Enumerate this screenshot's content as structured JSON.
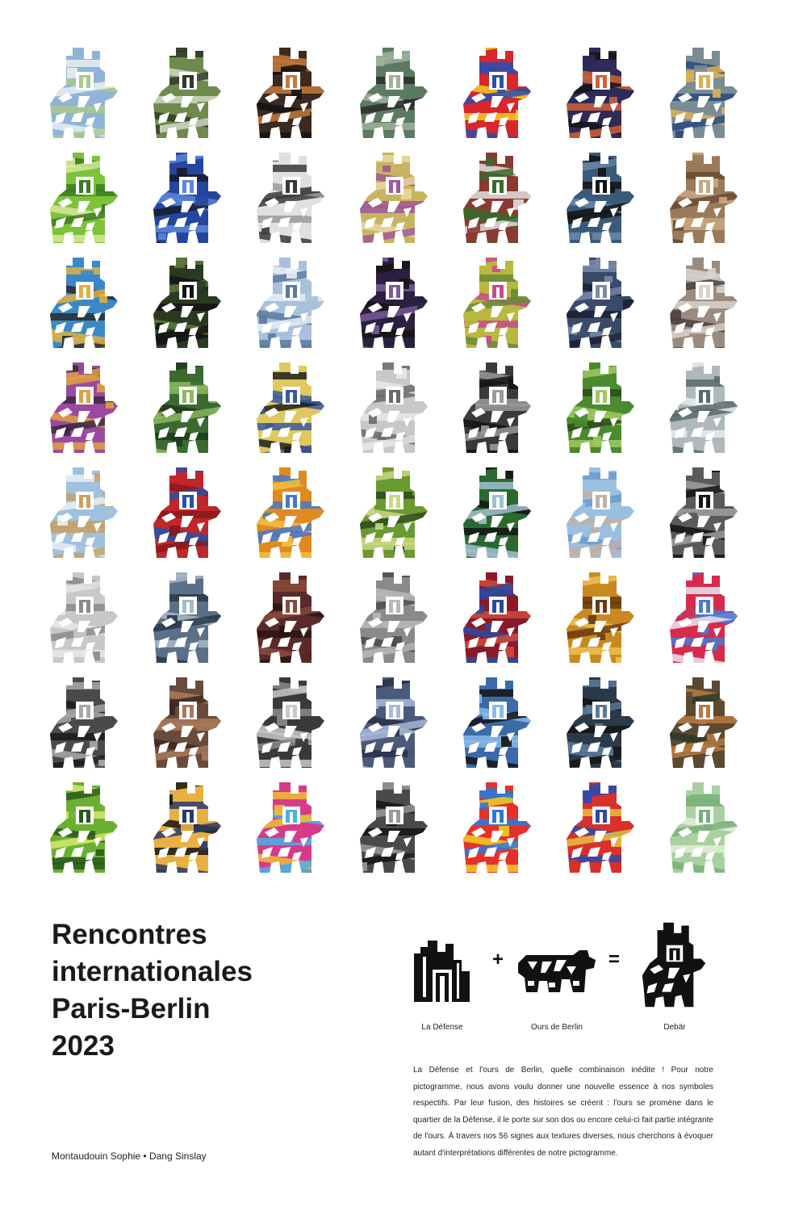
{
  "title_lines": [
    "Rencontres",
    "internationales",
    "Paris-Berlin",
    "2023"
  ],
  "authors": "Montaudouin Sophie • Dang Sinslay",
  "equation": {
    "left_label": "La Défense",
    "plus": "+",
    "middle_label": "Ours de Berlin",
    "equals": "=",
    "right_label": "Debär"
  },
  "description": "La Défense et l'ours de Berlin, quelle combinaison inédite ! Pour notre pictogramme, nous avons voulu donner une nouvelle essence à nos symboles respectifs. Par leur fusion, des histoires se créent : l'ours se promène dans le quartier de la Défense, il le porte sur son dos ou encore celui-ci fait partie intégrante de l'ours. À travers nos 56 signes aux textures diverses, nous cherchons à évoquer autant d'interprétations différentes de notre pictogramme.",
  "grid": {
    "columns": 7,
    "rows": 8,
    "textures": [
      [
        "#8fb4d8",
        "#a8c98e",
        "#e8eef2"
      ],
      [
        "#6e8a4c",
        "#2f3a28",
        "#cfd8c4"
      ],
      [
        "#3a2a20",
        "#c8783a",
        "#141414"
      ],
      [
        "#5b7a62",
        "#9fb29a",
        "#2c2c2c"
      ],
      [
        "#d8262a",
        "#2a4fb0",
        "#f0d020"
      ],
      [
        "#2e2a5a",
        "#d0603a",
        "#141414"
      ],
      [
        "#7a8c94",
        "#e0b050",
        "#2a4a80"
      ],
      [
        "#7cc23a",
        "#3c7a20",
        "#d8e89a"
      ],
      [
        "#2446a0",
        "#5a86d8",
        "#1a1a2a"
      ],
      [
        "#e0e0e0",
        "#3a3a3a",
        "#9a9a9a"
      ],
      [
        "#c8b460",
        "#a05898",
        "#e8d8a0"
      ],
      [
        "#8a3a30",
        "#3a6a2a",
        "#e0e0e0"
      ],
      [
        "#3a5a7a",
        "#141414",
        "#6a8aa8"
      ],
      [
        "#9a7a5a",
        "#c8a880",
        "#6a4a30"
      ],
      [
        "#3a88c8",
        "#e0b040",
        "#2a2a2a"
      ],
      [
        "#2a3a20",
        "#141414",
        "#5a7a3a"
      ],
      [
        "#a8c0dc",
        "#5a7aa0",
        "#e8eef4"
      ],
      [
        "#2a2040",
        "#7a5a9a",
        "#141414"
      ],
      [
        "#b8b840",
        "#c84a8a",
        "#6a8a3a"
      ],
      [
        "#3a4a6a",
        "#7a8aa8",
        "#1a2030"
      ],
      [
        "#9a8a80",
        "#d8d4cc",
        "#4a4040"
      ],
      [
        "#9a4aa0",
        "#e0a040",
        "#3a2a40"
      ],
      [
        "#3a6a30",
        "#8ab860",
        "#1e3a1a"
      ],
      [
        "#e0c860",
        "#3a5aa0",
        "#1e1e1e"
      ],
      [
        "#c8c8c8",
        "#6a6a6a",
        "#e8e8e8"
      ],
      [
        "#3a3a3a",
        "#9a9a9a",
        "#141414"
      ],
      [
        "#4a8a30",
        "#a0c860",
        "#2a4a1a"
      ],
      [
        "#b0b8bc",
        "#5a6a6a",
        "#e8ecee"
      ],
      [
        "#a0c0e0",
        "#c8a060",
        "#e8eef2"
      ],
      [
        "#c0262a",
        "#2a50a8",
        "#8a1a1a"
      ],
      [
        "#e08a20",
        "#4a78c8",
        "#f0c040"
      ],
      [
        "#6a9a30",
        "#c8d880",
        "#2a4a1a"
      ],
      [
        "#2a6a30",
        "#a0c0d0",
        "#141414"
      ],
      [
        "#9ac0e0",
        "#c0b0a8",
        "#6a9ad0"
      ],
      [
        "#5a5a5a",
        "#141414",
        "#a0a0a0"
      ],
      [
        "#c8c8c8",
        "#8a8a8a",
        "#e8e8e8"
      ],
      [
        "#5a7088",
        "#a8b8c8",
        "#2a3848"
      ],
      [
        "#5a2a2a",
        "#8a4a3a",
        "#2a1414"
      ],
      [
        "#8a8a8a",
        "#b8b8b8",
        "#4a4a4a"
      ],
      [
        "#8a1a2a",
        "#2a4aa0",
        "#d04a3a"
      ],
      [
        "#c88a20",
        "#6a3a10",
        "#f0c050"
      ],
      [
        "#d82a4a",
        "#4a7ad0",
        "#e8e8f0"
      ],
      [
        "#4a4a4a",
        "#a8a8a8",
        "#1a1a1a"
      ],
      [
        "#6a4a3a",
        "#a87a5a",
        "#3a2820"
      ],
      [
        "#3a3a3a",
        "#c8c8c8",
        "#8a8a8a"
      ],
      [
        "#4a5a7a",
        "#a8b8d8",
        "#2a3048"
      ],
      [
        "#3a6aa8",
        "#8ab8e8",
        "#141414"
      ],
      [
        "#2a3a4a",
        "#5a7a9a",
        "#141414"
      ],
      [
        "#5a4a30",
        "#b87a40",
        "#2a3a2a"
      ],
      [
        "#6ab030",
        "#2a5a1a",
        "#d8e870"
      ],
      [
        "#e8b040",
        "#2a3a6a",
        "#141414"
      ],
      [
        "#d83a8a",
        "#4ab0e8",
        "#f0c030"
      ],
      [
        "#4a4a4a",
        "#9a9a9a",
        "#141414"
      ],
      [
        "#e8302a",
        "#2a7ad8",
        "#f0d020"
      ],
      [
        "#d8302a",
        "#2a4ab0",
        "#e8c040"
      ],
      [
        "#a8d0a0",
        "#7ab07a",
        "#e0eed8"
      ]
    ]
  }
}
